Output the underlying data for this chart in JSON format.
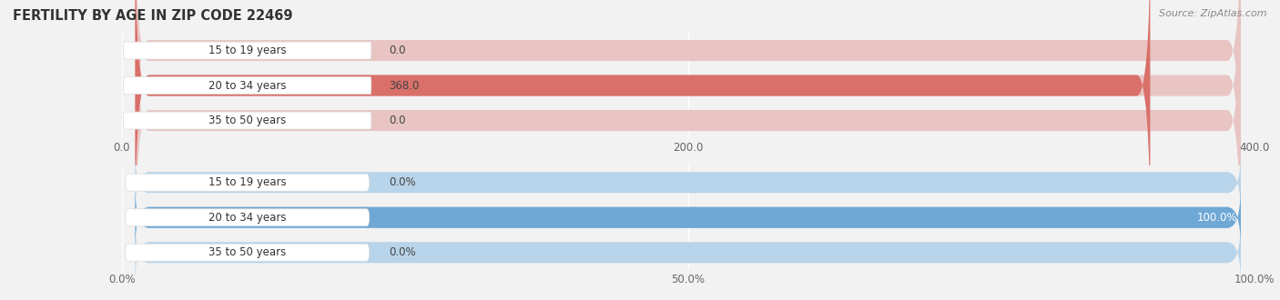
{
  "title": "FERTILITY BY AGE IN ZIP CODE 22469",
  "source_text": "Source: ZipAtlas.com",
  "top_chart": {
    "categories": [
      "15 to 19 years",
      "20 to 34 years",
      "35 to 50 years"
    ],
    "values": [
      0.0,
      368.0,
      0.0
    ],
    "max_val": 400.0,
    "xlim": [
      0,
      400
    ],
    "xticks": [
      0.0,
      200.0,
      400.0
    ],
    "xtick_labels": [
      "0.0",
      "200.0",
      "400.0"
    ],
    "bar_color_full": "#d9706a",
    "bar_color_empty": "#e8c5c3",
    "small_bar_color": "#c97070",
    "value_labels": [
      "0.0",
      "368.0",
      "0.0"
    ]
  },
  "bottom_chart": {
    "categories": [
      "15 to 19 years",
      "20 to 34 years",
      "35 to 50 years"
    ],
    "values": [
      0.0,
      100.0,
      0.0
    ],
    "max_val": 100.0,
    "xlim": [
      0,
      100
    ],
    "xticks": [
      0.0,
      50.0,
      100.0
    ],
    "xtick_labels": [
      "0.0%",
      "50.0%",
      "100.0%"
    ],
    "bar_color_full": "#6fa8d5",
    "bar_color_empty": "#b8d4ea",
    "small_bar_color": "#7aace0",
    "value_labels": [
      "0.0%",
      "100.0%",
      "0.0%"
    ]
  },
  "background_color": "#f2f2f2",
  "label_fontsize": 8.5,
  "tick_fontsize": 8.5,
  "title_fontsize": 10.5,
  "source_fontsize": 8,
  "title_color": "#333333",
  "tick_color": "#666666",
  "label_pill_color": "#ffffff",
  "label_text_color": "#333333",
  "bar_height": 0.6,
  "bar_gap": 0.15
}
